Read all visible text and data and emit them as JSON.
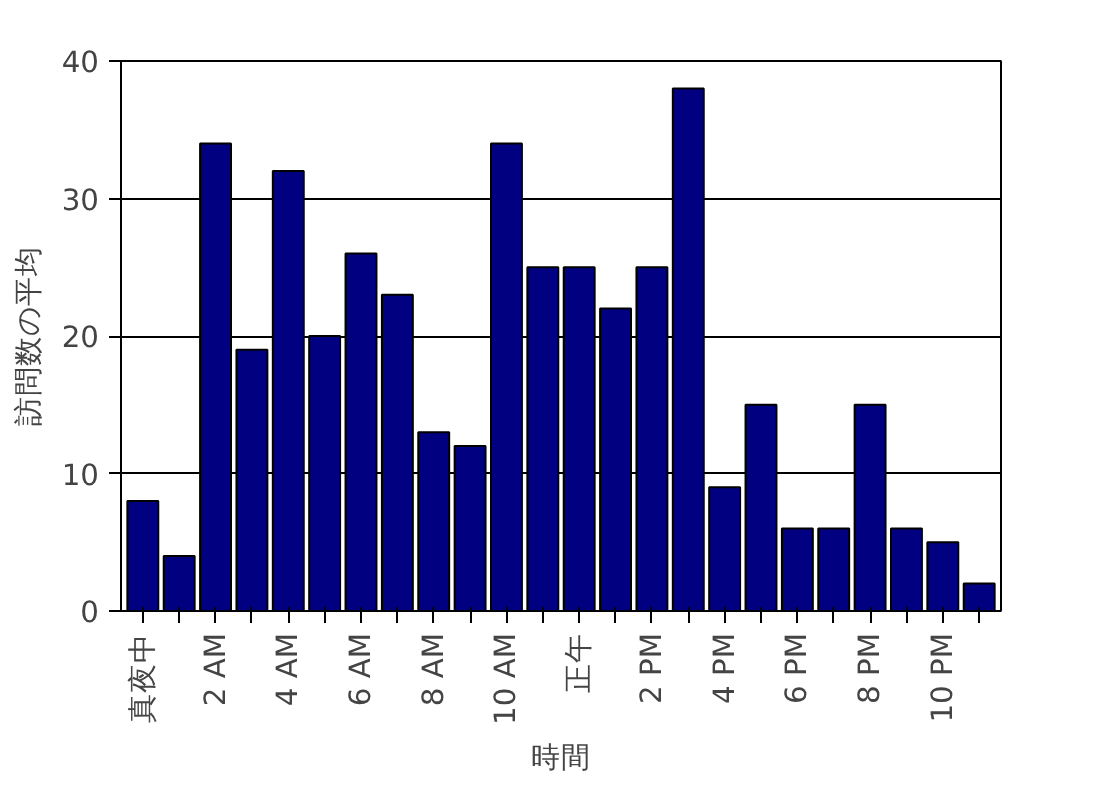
{
  "chart_data": {
    "type": "bar",
    "xlabel": "時間",
    "ylabel": "訪問数の平均",
    "categories": [
      "真夜中",
      null,
      "2 AM",
      null,
      "4 AM",
      null,
      "6 AM",
      null,
      "8 AM",
      null,
      "10 AM",
      null,
      "正午",
      null,
      "2 PM",
      null,
      "4 PM",
      null,
      "6 PM",
      null,
      "8 PM",
      null,
      "10 PM",
      null
    ],
    "values": [
      8,
      4,
      34,
      19,
      32,
      20,
      26,
      23,
      13,
      12,
      34,
      25,
      25,
      22,
      25,
      38,
      9,
      15,
      6,
      6,
      15,
      6,
      5,
      2
    ],
    "color": "#000080",
    "ylim": [
      0,
      40
    ],
    "yticks": [
      0,
      10,
      20,
      30,
      40
    ],
    "grid": "y"
  }
}
